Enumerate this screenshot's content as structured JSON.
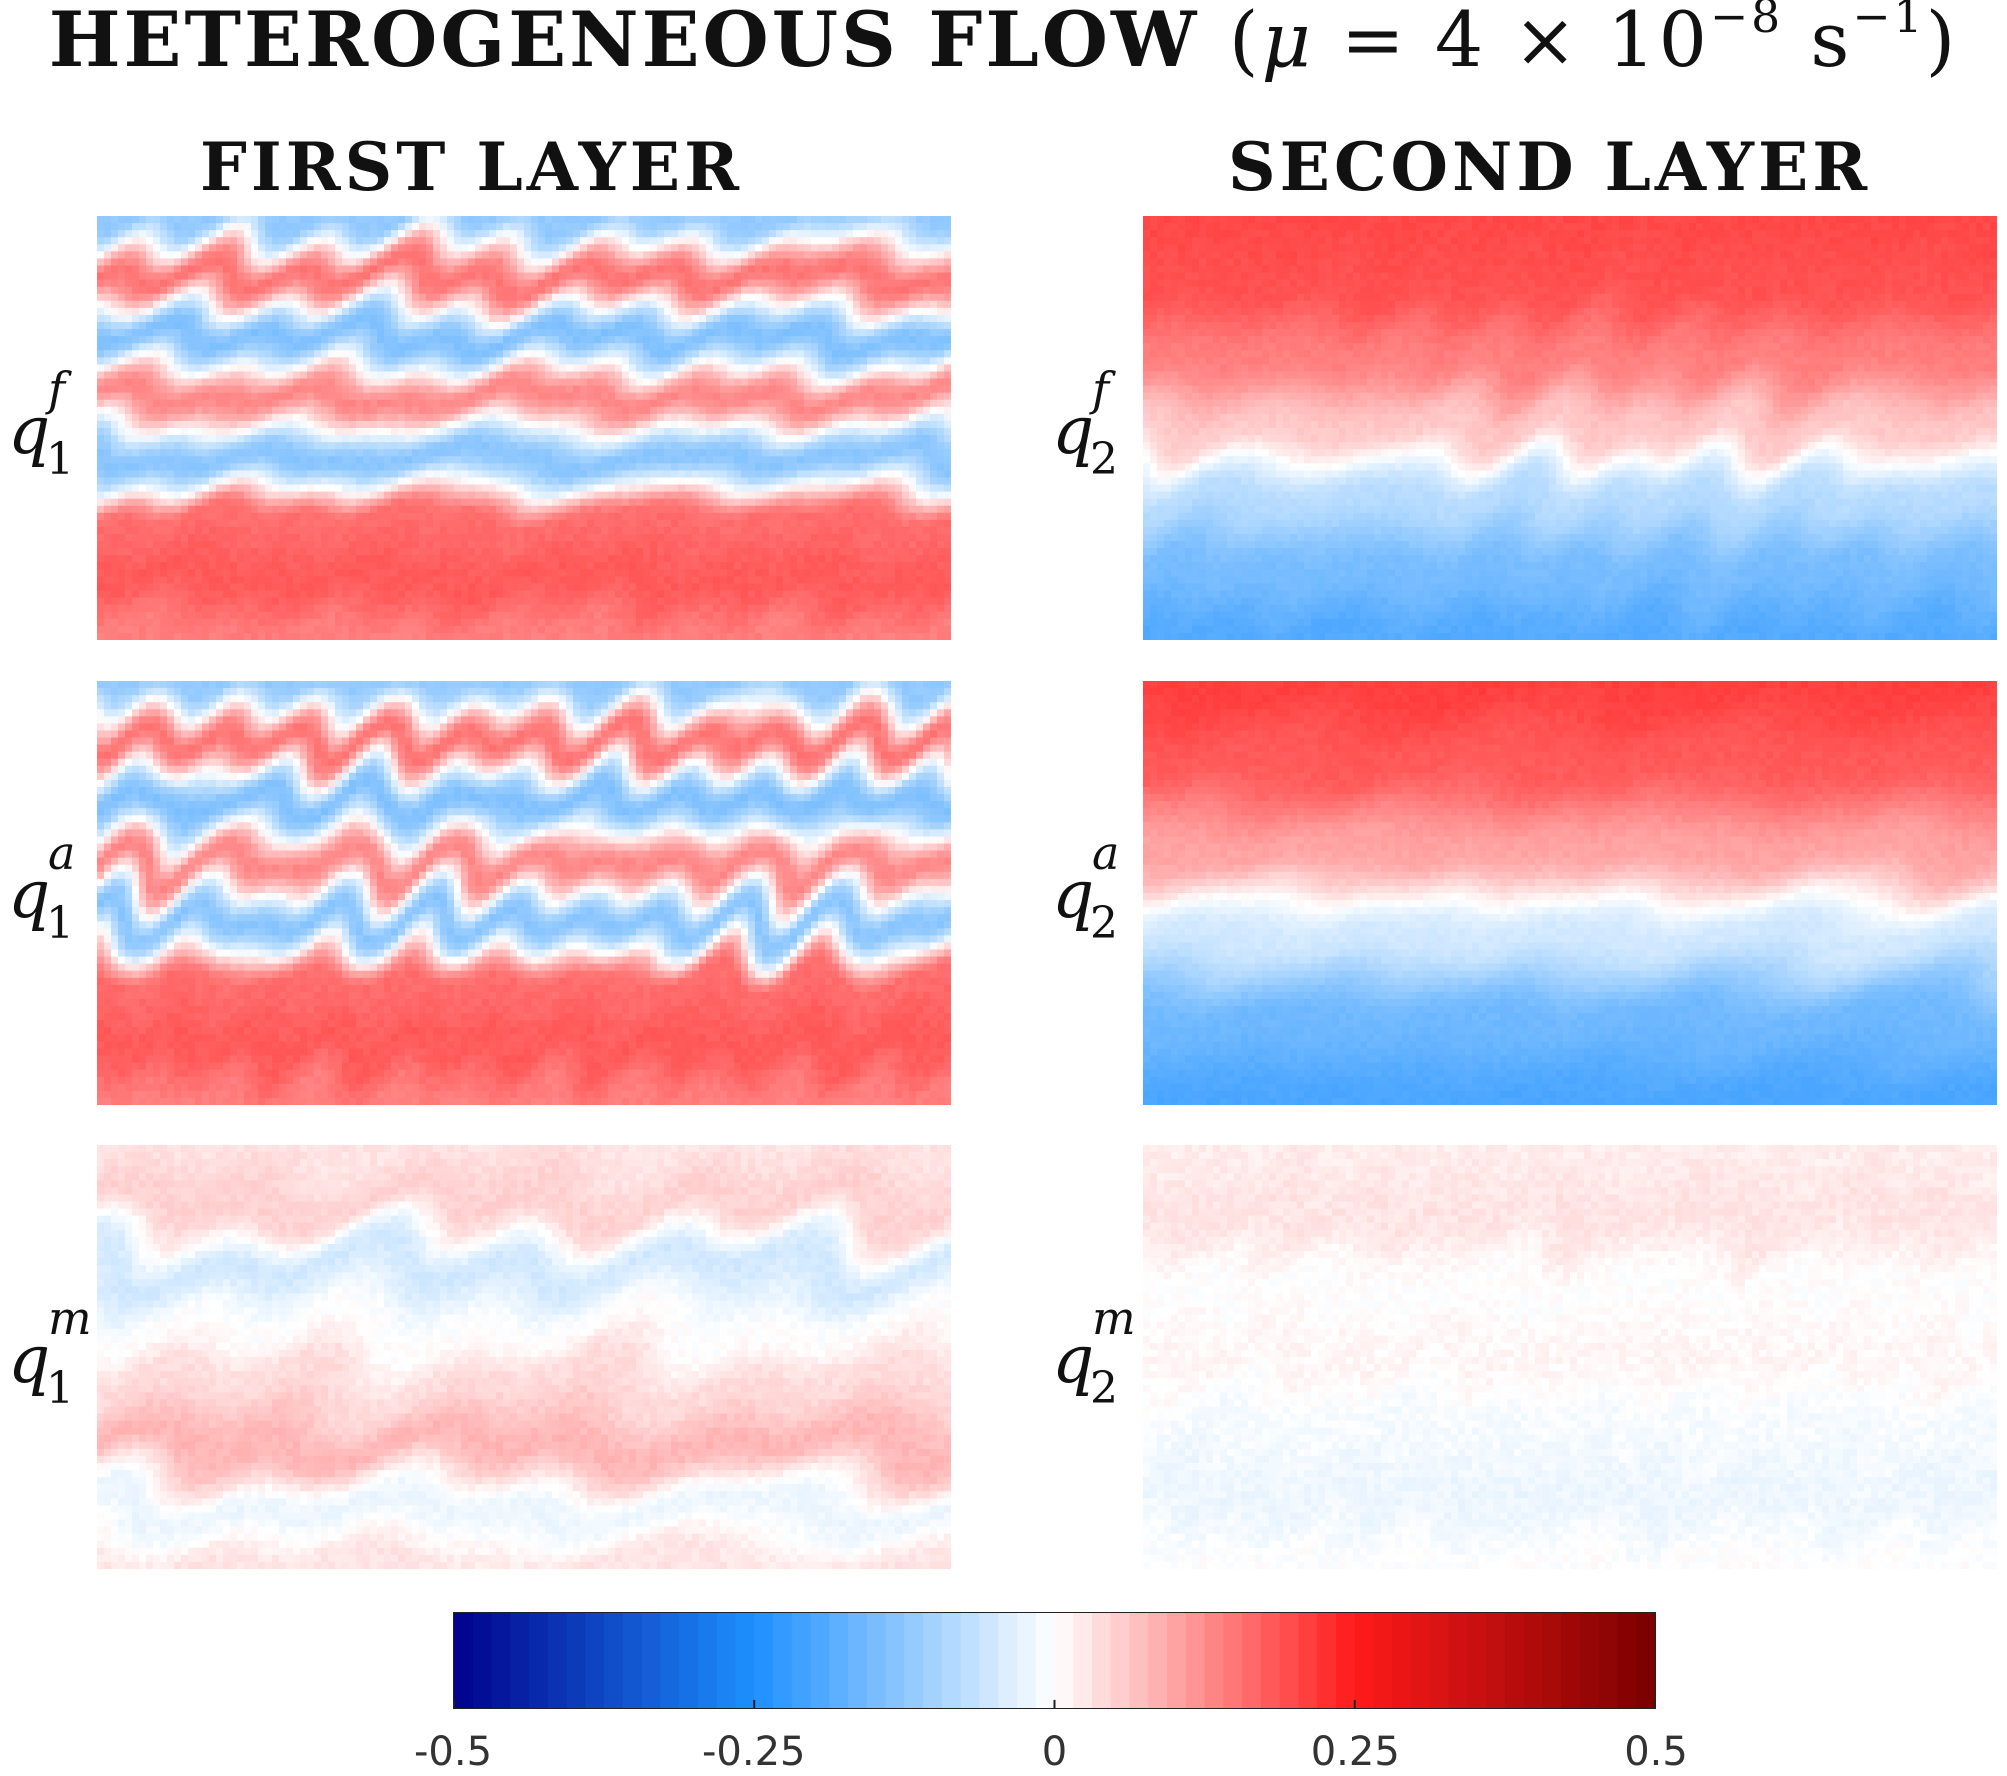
{
  "title": {
    "main": "HETEROGENEOUS FLOW",
    "param": "μ",
    "equals": "= 4 × 10",
    "exp": "−8",
    "unit": "s",
    "unit_exp": "−1"
  },
  "columns": [
    "FIRST LAYER",
    "SECOND LAYER"
  ],
  "row_labels": [
    {
      "base": "q",
      "sub": "1",
      "sup": "f"
    },
    {
      "base": "q",
      "sub": "2",
      "sup": "f"
    },
    {
      "base": "q",
      "sub": "1",
      "sup": "a"
    },
    {
      "base": "q",
      "sub": "2",
      "sup": "a"
    },
    {
      "base": "q",
      "sub": "1",
      "sup": "m"
    },
    {
      "base": "q",
      "sub": "2",
      "sup": "m"
    }
  ],
  "chart_data": {
    "type": "heatmap",
    "colormap": "blue-white-red (diverging)",
    "clim": [
      -0.5,
      0.5
    ],
    "colorbar_ticks": [
      -0.5,
      -0.25,
      0,
      0.25,
      0.5
    ],
    "colorbar_tick_labels": [
      "-0.5",
      "-0.25",
      "0",
      "0.25",
      "0.5"
    ],
    "colors": {
      "neg_dark": "#00008b",
      "neg": "#1e90ff",
      "zero": "#ffffff",
      "pos": "#ff1a1a",
      "pos_dark": "#7a0000"
    },
    "panels": [
      {
        "id": "q1f",
        "layer": "FIRST LAYER",
        "field": "q1^f",
        "bands": [
          -0.12,
          0.15,
          -0.14,
          0.13,
          -0.13,
          0.16,
          0.18,
          0.14
        ],
        "eddy_amp": 0.3
      },
      {
        "id": "q2f",
        "layer": "SECOND LAYER",
        "field": "q2^f",
        "bands": [
          0.2,
          0.19,
          0.14,
          0.06,
          -0.08,
          -0.15,
          -0.19
        ],
        "eddy_amp": 0.25
      },
      {
        "id": "q1a",
        "layer": "FIRST LAYER",
        "field": "q1^a",
        "bands": [
          -0.12,
          0.15,
          -0.14,
          0.13,
          -0.13,
          0.16,
          0.18,
          0.14
        ],
        "eddy_amp": 0.3
      },
      {
        "id": "q2a",
        "layer": "SECOND LAYER",
        "field": "q2^a",
        "bands": [
          0.21,
          0.18,
          0.1,
          -0.05,
          -0.16,
          -0.2
        ],
        "eddy_amp": 0.25
      },
      {
        "id": "q1m",
        "layer": "FIRST LAYER",
        "field": "q1^m",
        "bands": [
          0.03,
          0.05,
          -0.05,
          0.0,
          0.04,
          0.08,
          -0.02,
          0.03
        ],
        "eddy_amp": 0.35
      },
      {
        "id": "q2m",
        "layer": "SECOND LAYER",
        "field": "q2^m",
        "bands": [
          0.02,
          0.03,
          0.0,
          0.01,
          -0.01,
          -0.02,
          0.0
        ],
        "eddy_amp": 0.35
      }
    ]
  }
}
